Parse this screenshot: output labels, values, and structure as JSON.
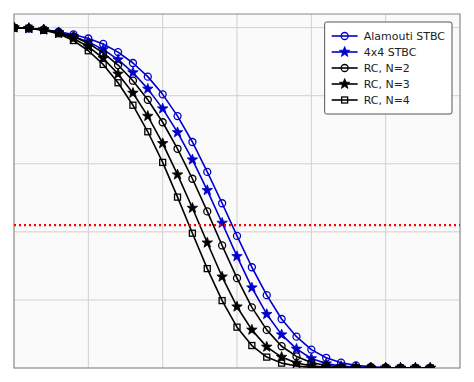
{
  "chart_data": {
    "type": "line",
    "x": [
      0,
      1,
      2,
      3,
      4,
      5,
      6,
      7,
      8,
      9,
      10,
      11,
      12,
      13,
      14,
      15,
      16,
      17,
      18,
      19,
      20,
      21,
      22,
      23,
      24,
      25,
      26,
      27,
      28
    ],
    "series": [
      {
        "name": "Alamouti STBC",
        "color": "#0000cc",
        "marker": "open-circle",
        "values": [
          0.5,
          0.499,
          0.497,
          0.494,
          0.49,
          0.484,
          0.476,
          0.464,
          0.448,
          0.428,
          0.402,
          0.37,
          0.332,
          0.288,
          0.242,
          0.194,
          0.148,
          0.107,
          0.072,
          0.046,
          0.027,
          0.015,
          0.0078,
          0.0038,
          0.0017,
          0.00072,
          0.00028,
          9.8e-05,
          3.1e-05
        ]
      },
      {
        "name": "4x4 STBC",
        "color": "#0000cc",
        "marker": "star",
        "values": [
          0.5,
          0.499,
          0.497,
          0.493,
          0.487,
          0.479,
          0.468,
          0.453,
          0.434,
          0.41,
          0.381,
          0.346,
          0.306,
          0.261,
          0.213,
          0.164,
          0.118,
          0.079,
          0.049,
          0.028,
          0.014,
          0.0065,
          0.0027,
          0.00101,
          0.00033,
          9.7e-05,
          2.5e-05,
          5.7e-06,
          1.2e-06
        ]
      },
      {
        "name": "RC, N=2",
        "color": "#000000",
        "marker": "open-circle",
        "values": [
          0.5,
          0.499,
          0.497,
          0.493,
          0.487,
          0.477,
          0.463,
          0.445,
          0.422,
          0.394,
          0.361,
          0.322,
          0.278,
          0.23,
          0.18,
          0.132,
          0.089,
          0.056,
          0.032,
          0.017,
          0.0082,
          0.0036,
          0.0014,
          0.0005,
          0.00016,
          4.6e-05,
          1.1e-05,
          2.4e-06,
          4.4e-07
        ]
      },
      {
        "name": "RC, N=3",
        "color": "#000000",
        "marker": "star",
        "values": [
          0.5,
          0.499,
          0.497,
          0.492,
          0.484,
          0.472,
          0.455,
          0.432,
          0.404,
          0.37,
          0.33,
          0.284,
          0.235,
          0.184,
          0.134,
          0.09,
          0.056,
          0.031,
          0.016,
          0.0074,
          0.0031,
          0.0011,
          0.00036,
          0.000103,
          2.6e-05,
          5.8e-06,
          1.1e-06,
          1.9e-07,
          2.8e-08
        ]
      },
      {
        "name": "RC, N=4",
        "color": "#000000",
        "marker": "open-square",
        "values": [
          0.5,
          0.499,
          0.496,
          0.491,
          0.481,
          0.466,
          0.446,
          0.419,
          0.386,
          0.347,
          0.302,
          0.251,
          0.198,
          0.146,
          0.099,
          0.06,
          0.033,
          0.016,
          0.0072,
          0.0028,
          0.00096,
          0.00029,
          7.7e-05,
          1.7e-05,
          3.3e-06,
          5.6e-07,
          8.1e-08,
          1e-08,
          1.1e-09
        ]
      }
    ],
    "reference_line": {
      "value": 0.21,
      "color": "red",
      "line_style": "dotted"
    },
    "xlim": [
      0,
      30
    ],
    "xticks": [
      0,
      5,
      10,
      15,
      20,
      25,
      30
    ],
    "ylim": [
      0.0,
      0.52
    ],
    "yticks": [
      0,
      0.1,
      0.2,
      0.3,
      0.4,
      0.5
    ],
    "grid": true,
    "tick_labels": false,
    "legend": "upper right"
  }
}
